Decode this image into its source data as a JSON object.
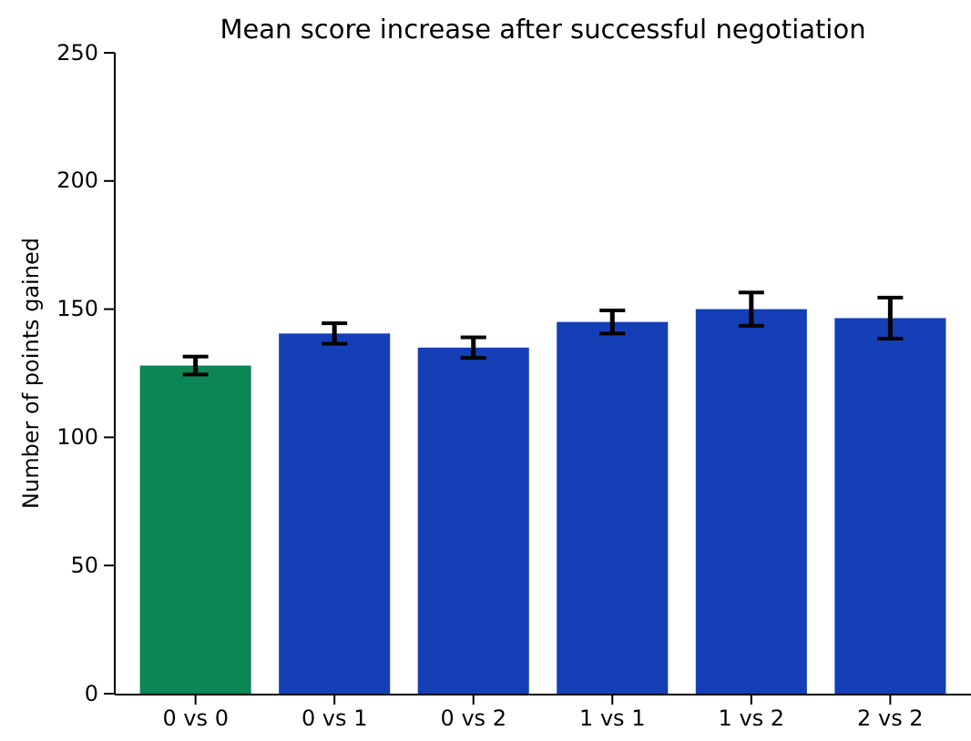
{
  "chart_data": {
    "type": "bar",
    "title": "Mean score increase after successful negotiation",
    "ylabel": "Number of points gained",
    "categories": [
      "0 vs 0",
      "0 vs 1",
      "0 vs 2",
      "1 vs 1",
      "1 vs 2",
      "2 vs 2"
    ],
    "values": [
      128,
      140.5,
      135,
      145,
      150,
      146.5
    ],
    "errors": [
      3.5,
      4,
      4,
      4.5,
      6.5,
      8
    ],
    "colors": [
      "#0b8654",
      "#143fb7",
      "#143fb7",
      "#143fb7",
      "#143fb7",
      "#143fb7"
    ],
    "ylim": [
      0,
      250
    ],
    "yticks": [
      0,
      50,
      100,
      150,
      200,
      250
    ],
    "grid": false
  }
}
